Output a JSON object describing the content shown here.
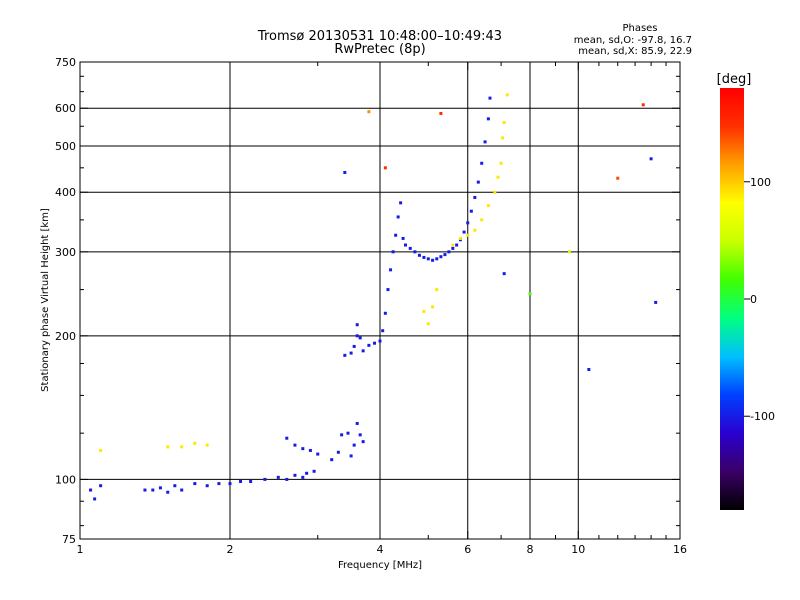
{
  "chart_data": {
    "type": "scatter",
    "title_line1": "Tromsø 20130531 10:48:00–10:49:43",
    "title_line2": "RwPretec (8p)",
    "info": {
      "title": "Phases",
      "line1": "mean, sd,O: -97.8, 16.7",
      "line2": "mean, sd,X: 85.9, 22.9"
    },
    "xlabel": "Frequency [MHz]",
    "ylabel": "Stationary phase Virtual Height [km]",
    "x_scale": "log",
    "y_scale": "log",
    "xlim": [
      1,
      16
    ],
    "ylim": [
      75,
      750
    ],
    "x_ticks": [
      1,
      2,
      4,
      6,
      8,
      10,
      16
    ],
    "y_ticks": [
      75,
      100,
      200,
      300,
      400,
      500,
      600,
      750
    ],
    "x_grid": [
      2,
      4,
      6,
      8,
      10
    ],
    "y_grid": [
      100,
      200,
      300,
      400,
      500,
      600
    ],
    "colorbar": {
      "label": "[deg]",
      "ticks": [
        100,
        0,
        -100
      ],
      "range": [
        -180,
        180
      ],
      "colors": [
        "#000000",
        "#3a0066",
        "#2a00d0",
        "#0040ff",
        "#00c0ff",
        "#00ff80",
        "#40ff00",
        "#c8ff00",
        "#ffff00",
        "#ffa000",
        "#ff3000",
        "#ff0000"
      ]
    },
    "series": [
      {
        "type": "O-trace",
        "phase_deg": -100,
        "points": [
          [
            1.05,
            95
          ],
          [
            1.07,
            91
          ],
          [
            1.1,
            97
          ],
          [
            1.35,
            95
          ],
          [
            1.4,
            95
          ],
          [
            1.45,
            96
          ],
          [
            1.5,
            94
          ],
          [
            1.55,
            97
          ],
          [
            1.6,
            95
          ],
          [
            1.7,
            98
          ],
          [
            1.8,
            97
          ],
          [
            1.9,
            98
          ],
          [
            2.0,
            98
          ],
          [
            2.1,
            99
          ],
          [
            2.2,
            99
          ],
          [
            2.35,
            100
          ],
          [
            2.5,
            101
          ],
          [
            2.6,
            100
          ],
          [
            2.7,
            102
          ],
          [
            2.8,
            101
          ],
          [
            2.85,
            103
          ],
          [
            2.95,
            104
          ],
          [
            2.6,
            122
          ],
          [
            2.7,
            118
          ],
          [
            2.8,
            116
          ],
          [
            2.9,
            115
          ],
          [
            3.0,
            113
          ],
          [
            3.2,
            110
          ],
          [
            3.3,
            114
          ],
          [
            3.35,
            124
          ],
          [
            3.45,
            125
          ],
          [
            3.5,
            112
          ],
          [
            3.55,
            118
          ],
          [
            3.6,
            131
          ],
          [
            3.65,
            124
          ],
          [
            3.7,
            120
          ],
          [
            3.4,
            182
          ],
          [
            3.5,
            184
          ],
          [
            3.55,
            190
          ],
          [
            3.6,
            200
          ],
          [
            3.6,
            211
          ],
          [
            3.65,
            198
          ],
          [
            3.7,
            186
          ],
          [
            3.8,
            191
          ],
          [
            3.9,
            193
          ],
          [
            4.0,
            195
          ],
          [
            4.05,
            205
          ],
          [
            4.1,
            223
          ],
          [
            4.15,
            250
          ],
          [
            4.2,
            275
          ],
          [
            4.25,
            300
          ],
          [
            4.3,
            325
          ],
          [
            4.35,
            355
          ],
          [
            4.4,
            380
          ],
          [
            4.45,
            320
          ],
          [
            4.5,
            310
          ],
          [
            4.6,
            305
          ],
          [
            4.7,
            300
          ],
          [
            4.8,
            295
          ],
          [
            4.9,
            292
          ],
          [
            5.0,
            290
          ],
          [
            5.1,
            288
          ],
          [
            5.2,
            290
          ],
          [
            5.3,
            293
          ],
          [
            5.4,
            296
          ],
          [
            5.5,
            300
          ],
          [
            5.6,
            305
          ],
          [
            5.7,
            310
          ],
          [
            5.8,
            318
          ],
          [
            5.9,
            330
          ],
          [
            6.0,
            345
          ],
          [
            6.1,
            365
          ],
          [
            6.2,
            390
          ],
          [
            6.3,
            420
          ],
          [
            6.4,
            460
          ],
          [
            6.5,
            510
          ],
          [
            6.6,
            570
          ],
          [
            6.65,
            630
          ]
        ]
      },
      {
        "type": "X-trace",
        "phase_deg": 90,
        "points": [
          [
            1.1,
            115
          ],
          [
            1.5,
            117
          ],
          [
            1.6,
            117
          ],
          [
            1.7,
            119
          ],
          [
            1.8,
            118
          ],
          [
            4.9,
            225
          ],
          [
            5.0,
            212
          ],
          [
            5.1,
            230
          ],
          [
            5.2,
            250
          ],
          [
            5.6,
            310
          ],
          [
            5.8,
            320
          ],
          [
            6.0,
            325
          ],
          [
            6.2,
            333
          ],
          [
            6.4,
            350
          ],
          [
            6.6,
            375
          ],
          [
            6.8,
            400
          ],
          [
            6.9,
            430
          ],
          [
            7.0,
            460
          ],
          [
            7.05,
            520
          ],
          [
            7.1,
            560
          ],
          [
            7.2,
            640
          ]
        ]
      },
      {
        "type": "scattered",
        "phase_deg": [
          -100,
          120,
          150,
          150,
          150,
          140,
          -100,
          20,
          -100,
          50,
          -100,
          -100
        ],
        "points": [
          [
            3.4,
            440
          ],
          [
            3.8,
            590
          ],
          [
            4.1,
            450
          ],
          [
            5.3,
            585
          ],
          [
            13.5,
            610
          ],
          [
            12.0,
            428
          ],
          [
            14.0,
            470
          ],
          [
            8.0,
            245
          ],
          [
            7.1,
            270
          ],
          [
            9.6,
            300
          ],
          [
            14.3,
            235
          ],
          [
            10.5,
            170
          ]
        ]
      }
    ]
  }
}
